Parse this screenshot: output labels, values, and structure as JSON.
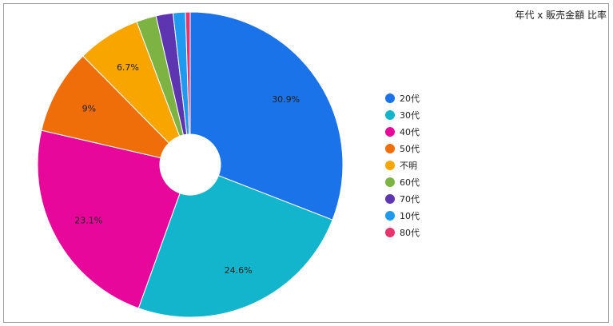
{
  "chart_data": {
    "type": "pie",
    "title": "年代 x 販売金額 比率",
    "donut": true,
    "legend_position": "right",
    "slices": [
      {
        "name": "20代",
        "value": 30.9,
        "label": "30.9%",
        "color": "#1a73e8"
      },
      {
        "name": "30代",
        "value": 24.6,
        "label": "24.6%",
        "color": "#12b5cb"
      },
      {
        "name": "40代",
        "value": 23.1,
        "label": "23.1%",
        "color": "#e8079b"
      },
      {
        "name": "50代",
        "value": 9.0,
        "label": "9%",
        "color": "#f06e0a"
      },
      {
        "name": "不明",
        "value": 6.7,
        "label": "6.7%",
        "color": "#f9a500"
      },
      {
        "name": "60代",
        "value": 2.1,
        "label": "",
        "color": "#7cb342"
      },
      {
        "name": "70代",
        "value": 1.8,
        "label": "",
        "color": "#5e35b1"
      },
      {
        "name": "10代",
        "value": 1.3,
        "label": "",
        "color": "#1e9af0"
      },
      {
        "name": "80代",
        "value": 0.5,
        "label": "",
        "color": "#e8336c"
      }
    ]
  }
}
